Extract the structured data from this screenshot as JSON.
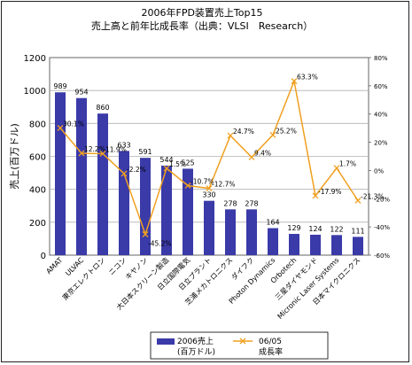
{
  "chart_data": {
    "type": "bar",
    "title": "2006年FPD装置売上Top15",
    "subtitle": "売上高と前年比成長率（出典：VLSI　Research）",
    "ylabel": "売上(百万ドル)",
    "ylim": [
      0,
      1200
    ],
    "yticks": [
      "0",
      "200",
      "400",
      "600",
      "800",
      "1000",
      "1200"
    ],
    "y2lim": [
      -60,
      80
    ],
    "y2ticks": [
      "-60%",
      "-40%",
      "-20%",
      "0%",
      "20%",
      "40%",
      "60%",
      "80%"
    ],
    "grid": "horizontal",
    "legend_position": "bottom",
    "categories": [
      "AMAT",
      "ULVAC",
      "東京エレクトロン",
      "ニコン",
      "キヤノン",
      "大日本スクリーン製造",
      "日立国際電気",
      "日立プラント",
      "芝浦メカトロニクス",
      "ダイフク",
      "Photon Dynamics",
      "Orbotech",
      "三星ダイヤモンド",
      "Micronic Laser Systems",
      "日本マイクロニクス"
    ],
    "series": [
      {
        "name": "2006売上\n(百万ドル)",
        "type": "bar",
        "axis": "left",
        "color": "#3a3aa8",
        "values": [
          989,
          954,
          860,
          633,
          591,
          544,
          525,
          330,
          278,
          278,
          164,
          129,
          124,
          122,
          111
        ],
        "labels": [
          "989",
          "954",
          "860",
          "633",
          "591",
          "544",
          "525",
          "330",
          "278",
          "278",
          "164",
          "129",
          "124",
          "122",
          "111"
        ]
      },
      {
        "name": "06/05\n成長率",
        "type": "line",
        "axis": "right",
        "color": "#f0a020",
        "values": [
          30.1,
          12.2,
          11.9,
          -2.2,
          -45.2,
          1.5,
          -10.7,
          -12.7,
          24.7,
          9.4,
          25.2,
          63.3,
          -17.9,
          1.7,
          -21.3
        ],
        "labels": [
          "30.1%",
          "12.2%",
          "11.9%",
          "-2.2%",
          "-45.2%",
          "1.5%",
          "-10.7%",
          "-12.7%",
          "24.7%",
          "9.4%",
          "25.2%",
          "63.3%",
          "-17.9%",
          "1.7%",
          "-21.3%"
        ]
      }
    ]
  }
}
